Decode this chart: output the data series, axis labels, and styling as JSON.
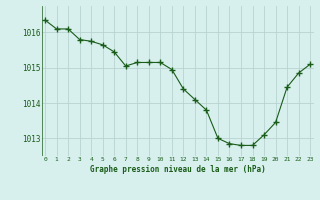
{
  "x": [
    0,
    1,
    2,
    3,
    4,
    5,
    6,
    7,
    8,
    9,
    10,
    11,
    12,
    13,
    14,
    15,
    16,
    17,
    18,
    19,
    20,
    21,
    22,
    23
  ],
  "y": [
    1016.35,
    1016.1,
    1016.1,
    1015.8,
    1015.75,
    1015.65,
    1015.45,
    1015.05,
    1015.15,
    1015.15,
    1015.15,
    1014.95,
    1014.4,
    1014.1,
    1013.8,
    1013.0,
    1012.85,
    1012.8,
    1012.8,
    1013.1,
    1013.45,
    1014.45,
    1014.85,
    1015.1
  ],
  "line_color": "#1a5c1a",
  "marker_color": "#1a5c1a",
  "bg_color": "#d7f0ed",
  "grid_color": "#b8d4d0",
  "xlabel": "Graphe pression niveau de la mer (hPa)",
  "xlabel_color": "#1a5c1a",
  "tick_color": "#1a5c1a",
  "ylim": [
    1012.5,
    1016.75
  ],
  "yticks": [
    1013,
    1014,
    1015,
    1016
  ],
  "xticks": [
    0,
    1,
    2,
    3,
    4,
    5,
    6,
    7,
    8,
    9,
    10,
    11,
    12,
    13,
    14,
    15,
    16,
    17,
    18,
    19,
    20,
    21,
    22,
    23
  ],
  "xlim": [
    -0.3,
    23.3
  ]
}
